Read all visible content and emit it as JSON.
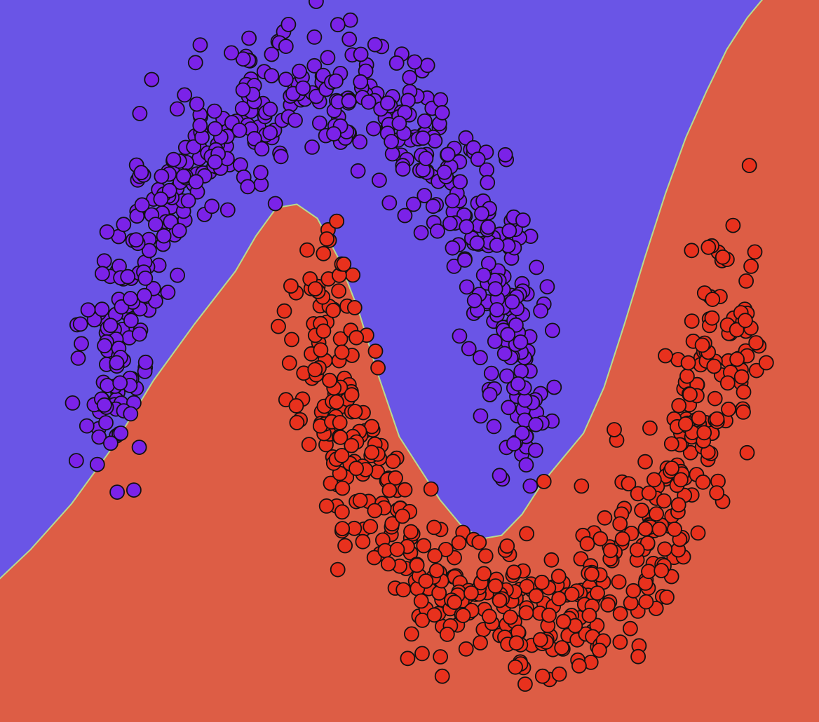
{
  "chart_data": {
    "type": "scatter",
    "title": "",
    "xlabel": "",
    "ylabel": "",
    "xlim": [
      -1.55,
      2.45
    ],
    "ylim": [
      -0.8,
      1.25
    ],
    "grid": false,
    "legend": "none",
    "colors": {
      "class_0_region": "#6a55e6",
      "class_1_region": "#dd5d45",
      "boundary": "#b7dc8e",
      "class_0_point": "#7b22e8",
      "class_1_point": "#e8311d",
      "point_edge": "#111111"
    },
    "decision_boundary": {
      "x": [
        -1.6,
        -1.4,
        -1.2,
        -1.0,
        -0.8,
        -0.6,
        -0.4,
        -0.3,
        -0.2,
        -0.1,
        0.0,
        0.1,
        0.2,
        0.3,
        0.4,
        0.5,
        0.6,
        0.7,
        0.8,
        0.9,
        1.0,
        1.1,
        1.2,
        1.3,
        1.4,
        1.5,
        1.6,
        1.7,
        1.8,
        1.9,
        2.0,
        2.1,
        2.2,
        2.3,
        2.45
      ],
      "y": [
        -0.42,
        -0.31,
        -0.18,
        -0.02,
        0.17,
        0.33,
        0.48,
        0.58,
        0.66,
        0.67,
        0.63,
        0.52,
        0.37,
        0.18,
        0.01,
        -0.08,
        -0.17,
        -0.24,
        -0.28,
        -0.27,
        -0.21,
        -0.12,
        -0.05,
        0.02,
        0.15,
        0.33,
        0.52,
        0.7,
        0.86,
        0.99,
        1.11,
        1.2,
        1.27,
        1.3,
        1.33
      ]
    },
    "moons": {
      "class_0_arc": {
        "center": [
          0,
          0
        ],
        "radius": 1,
        "angle_deg": [
          0,
          180
        ]
      },
      "class_1_arc": {
        "center": [
          1,
          0.5
        ],
        "radius": 1,
        "angle_deg": [
          180,
          360
        ]
      },
      "noise_sd": 0.1
    },
    "series": [
      {
        "points": [
          [
            -1.04,
            0.1
          ],
          [
            -0.98,
            0.22
          ],
          [
            -0.91,
            0.34
          ],
          [
            -0.84,
            0.46
          ],
          [
            -0.75,
            0.58
          ],
          [
            -0.63,
            0.68
          ],
          [
            -0.5,
            0.79
          ],
          [
            -0.38,
            0.88
          ],
          [
            -0.23,
            0.94
          ],
          [
            -0.07,
            1.0
          ],
          [
            0.09,
            1.02
          ],
          [
            0.25,
            0.96
          ],
          [
            0.4,
            0.9
          ],
          [
            0.53,
            0.8
          ],
          [
            0.66,
            0.68
          ],
          [
            0.78,
            0.56
          ],
          [
            0.87,
            0.43
          ],
          [
            0.93,
            0.3
          ],
          [
            0.98,
            0.16
          ],
          [
            1.0,
            0.02
          ],
          [
            1.02,
            -0.07
          ],
          [
            1.04,
            -0.13
          ],
          [
            0.89,
            -0.1
          ],
          [
            0.74,
            0.26
          ],
          [
            0.47,
            0.67
          ],
          [
            0.08,
            0.87
          ],
          [
            -0.34,
            0.72
          ],
          [
            -0.73,
            0.42
          ],
          [
            -0.96,
            0.02
          ],
          [
            -0.87,
            -0.02
          ],
          [
            -1.12,
            0.37
          ],
          [
            -0.86,
            0.76
          ],
          [
            -0.42,
            1.1
          ],
          [
            0.1,
            1.18
          ],
          [
            0.61,
            0.93
          ],
          [
            0.85,
            0.19
          ],
          [
            0.96,
            -0.01
          ]
        ]
      },
      {
        "points": [
          [
            -0.05,
            0.54
          ],
          [
            -0.01,
            0.43
          ],
          [
            0.03,
            0.31
          ],
          [
            0.06,
            0.17
          ],
          [
            0.11,
            0.05
          ],
          [
            0.19,
            -0.08
          ],
          [
            0.28,
            -0.2
          ],
          [
            0.39,
            -0.31
          ],
          [
            0.53,
            -0.4
          ],
          [
            0.67,
            -0.46
          ],
          [
            0.84,
            -0.5
          ],
          [
            1.02,
            -0.49
          ],
          [
            1.18,
            -0.45
          ],
          [
            1.34,
            -0.38
          ],
          [
            1.49,
            -0.28
          ],
          [
            1.62,
            -0.15
          ],
          [
            1.73,
            -0.01
          ],
          [
            1.82,
            0.13
          ],
          [
            1.88,
            0.27
          ],
          [
            1.93,
            0.4
          ],
          [
            1.98,
            0.52
          ],
          [
            2.03,
            0.61
          ],
          [
            2.09,
            0.34
          ],
          [
            1.7,
            0.24
          ],
          [
            1.29,
            -0.13
          ],
          [
            0.79,
            -0.29
          ],
          [
            0.37,
            -0.06
          ],
          [
            0.12,
            0.25
          ],
          [
            0.61,
            -0.67
          ],
          [
            1.1,
            -0.67
          ],
          [
            1.68,
            -0.37
          ],
          [
            2.08,
            0.08
          ],
          [
            -0.1,
            0.05
          ],
          [
            0.46,
            -0.55
          ],
          [
            1.45,
            0.03
          ],
          [
            2.11,
            0.78
          ]
        ]
      }
    ]
  }
}
